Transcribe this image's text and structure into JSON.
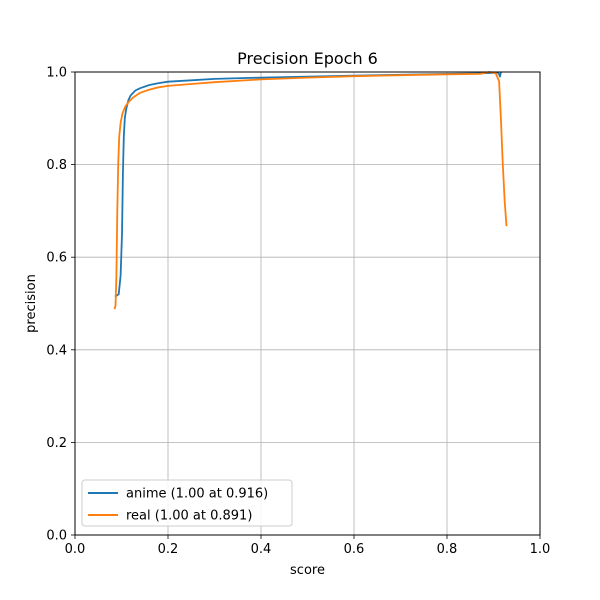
{
  "chart_data": {
    "type": "line",
    "title": "Precision Epoch 6",
    "xlabel": "score",
    "ylabel": "precision",
    "xlim": [
      0.0,
      1.0
    ],
    "ylim": [
      0.0,
      1.0
    ],
    "xticks": [
      "0.0",
      "0.2",
      "0.4",
      "0.6",
      "0.8",
      "1.0"
    ],
    "yticks": [
      "0.0",
      "0.2",
      "0.4",
      "0.6",
      "0.8",
      "1.0"
    ],
    "grid": true,
    "legend_position": "lower-left",
    "series": [
      {
        "name": "anime (1.00 at 0.916)",
        "color": "#1f77b4",
        "x": [
          0.086,
          0.094,
          0.098,
          0.101,
          0.103,
          0.105,
          0.107,
          0.11,
          0.115,
          0.12,
          0.13,
          0.14,
          0.16,
          0.18,
          0.2,
          0.25,
          0.3,
          0.4,
          0.5,
          0.6,
          0.7,
          0.8,
          0.87,
          0.9,
          0.906,
          0.909,
          0.912,
          0.914,
          0.916
        ],
        "y": [
          0.515,
          0.52,
          0.56,
          0.65,
          0.78,
          0.86,
          0.9,
          0.92,
          0.94,
          0.95,
          0.96,
          0.965,
          0.972,
          0.976,
          0.979,
          0.982,
          0.985,
          0.988,
          0.99,
          0.992,
          0.994,
          0.996,
          0.997,
          0.998,
          0.999,
          0.999,
          0.995,
          0.99,
          1.0
        ]
      },
      {
        "name": "real (1.00 at 0.891)",
        "color": "#ff7f0e",
        "x": [
          0.085,
          0.087,
          0.089,
          0.091,
          0.093,
          0.095,
          0.098,
          0.102,
          0.108,
          0.115,
          0.125,
          0.14,
          0.16,
          0.18,
          0.2,
          0.25,
          0.3,
          0.4,
          0.5,
          0.6,
          0.7,
          0.8,
          0.87,
          0.891,
          0.905,
          0.912,
          0.916,
          0.92,
          0.924,
          0.928
        ],
        "y": [
          0.488,
          0.495,
          0.56,
          0.7,
          0.8,
          0.86,
          0.89,
          0.91,
          0.925,
          0.935,
          0.945,
          0.955,
          0.962,
          0.967,
          0.97,
          0.974,
          0.978,
          0.984,
          0.988,
          0.991,
          0.993,
          0.995,
          0.996,
          1.0,
          0.997,
          0.98,
          0.9,
          0.8,
          0.72,
          0.667
        ]
      }
    ]
  }
}
